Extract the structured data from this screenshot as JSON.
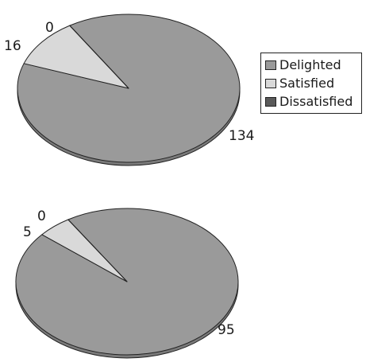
{
  "chart_data": [
    {
      "type": "pie",
      "categories": [
        "Delighted",
        "Satisfied",
        "Dissatisfied"
      ],
      "values": [
        134,
        16,
        0
      ],
      "labels": [
        "134",
        "16",
        "0"
      ]
    },
    {
      "type": "pie",
      "categories": [
        "Delighted",
        "Satisfied",
        "Dissatisfied"
      ],
      "values": [
        95,
        5,
        0
      ],
      "labels": [
        "95",
        "5",
        "0"
      ]
    }
  ],
  "legend": {
    "placement": "right",
    "items": [
      {
        "label": "Delighted",
        "color": "#9a9a9a"
      },
      {
        "label": "Satisfied",
        "color": "#d9d9d9"
      },
      {
        "label": "Dissatisfied",
        "color": "#5a5a5a"
      }
    ]
  },
  "colors": {
    "delighted": "#9a9a9a",
    "satisfied": "#d9d9d9",
    "dissatisfied": "#5a5a5a",
    "edge": "#222222",
    "rim": "#7a7a7a"
  }
}
